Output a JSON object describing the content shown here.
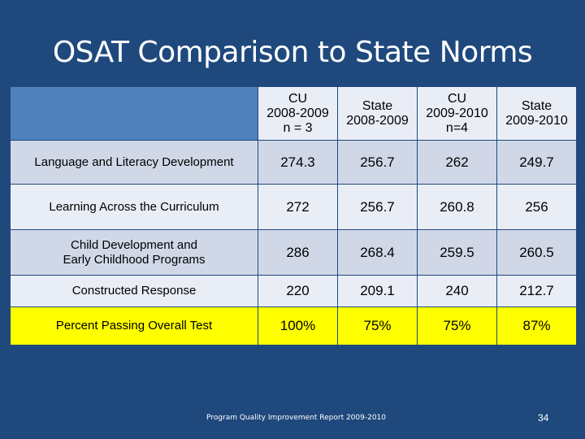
{
  "title": "OSAT Comparison to State Norms",
  "columns": [
    {
      "lines": [
        "CU",
        "2008-2009",
        "n = 3"
      ]
    },
    {
      "lines": [
        "State",
        "2008-2009"
      ]
    },
    {
      "lines": [
        "CU",
        "2009-2010",
        "n=4"
      ]
    },
    {
      "lines": [
        "State",
        "2009-2010"
      ]
    }
  ],
  "rows": [
    {
      "label": [
        "Language and Literacy Development"
      ],
      "values": [
        "274.3",
        "256.7",
        "262",
        "249.7"
      ]
    },
    {
      "label": [
        "Learning Across the Curriculum"
      ],
      "values": [
        "272",
        "256.7",
        "260.8",
        "256"
      ]
    },
    {
      "label": [
        "Child Development and",
        "Early Childhood Programs"
      ],
      "values": [
        "286",
        "268.4",
        "259.5",
        "260.5"
      ]
    },
    {
      "label": [
        "Constructed Response"
      ],
      "values": [
        "220",
        "209.1",
        "240",
        "212.7"
      ]
    },
    {
      "label": [
        "Percent Passing Overall Test"
      ],
      "values": [
        "100%",
        "75%",
        "75%",
        "87%"
      ]
    }
  ],
  "footer": "Program Quality Improvement Report 2009-2010",
  "page_number": "34"
}
